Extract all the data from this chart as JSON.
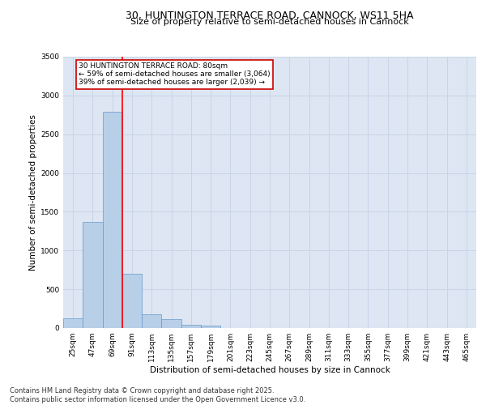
{
  "title_line1": "30, HUNTINGTON TERRACE ROAD, CANNOCK, WS11 5HA",
  "title_line2": "Size of property relative to semi-detached houses in Cannock",
  "xlabel": "Distribution of semi-detached houses by size in Cannock",
  "ylabel": "Number of semi-detached properties",
  "categories": [
    "25sqm",
    "47sqm",
    "69sqm",
    "91sqm",
    "113sqm",
    "135sqm",
    "157sqm",
    "179sqm",
    "201sqm",
    "223sqm",
    "245sqm",
    "267sqm",
    "289sqm",
    "311sqm",
    "333sqm",
    "355sqm",
    "377sqm",
    "399sqm",
    "421sqm",
    "443sqm",
    "465sqm"
  ],
  "values": [
    130,
    1370,
    2790,
    700,
    175,
    110,
    45,
    30,
    0,
    0,
    0,
    0,
    0,
    0,
    0,
    0,
    0,
    0,
    0,
    0,
    0
  ],
  "bar_color": "#b8cfe8",
  "bar_edge_color": "#6699cc",
  "grid_color": "#c8d4e8",
  "background_color": "#dde6f2",
  "annotation_text": "30 HUNTINGTON TERRACE ROAD: 80sqm\n← 59% of semi-detached houses are smaller (3,064)\n39% of semi-detached houses are larger (2,039) →",
  "annotation_box_color": "#ffffff",
  "annotation_box_edge_color": "#cc0000",
  "red_line_x": 2.5,
  "ylim": [
    0,
    3500
  ],
  "yticks": [
    0,
    500,
    1000,
    1500,
    2000,
    2500,
    3000,
    3500
  ],
  "footer_text": "Contains HM Land Registry data © Crown copyright and database right 2025.\nContains public sector information licensed under the Open Government Licence v3.0.",
  "title_fontsize": 9,
  "subtitle_fontsize": 8,
  "axis_label_fontsize": 7.5,
  "tick_fontsize": 6.5,
  "annotation_fontsize": 6.5,
  "footer_fontsize": 6
}
